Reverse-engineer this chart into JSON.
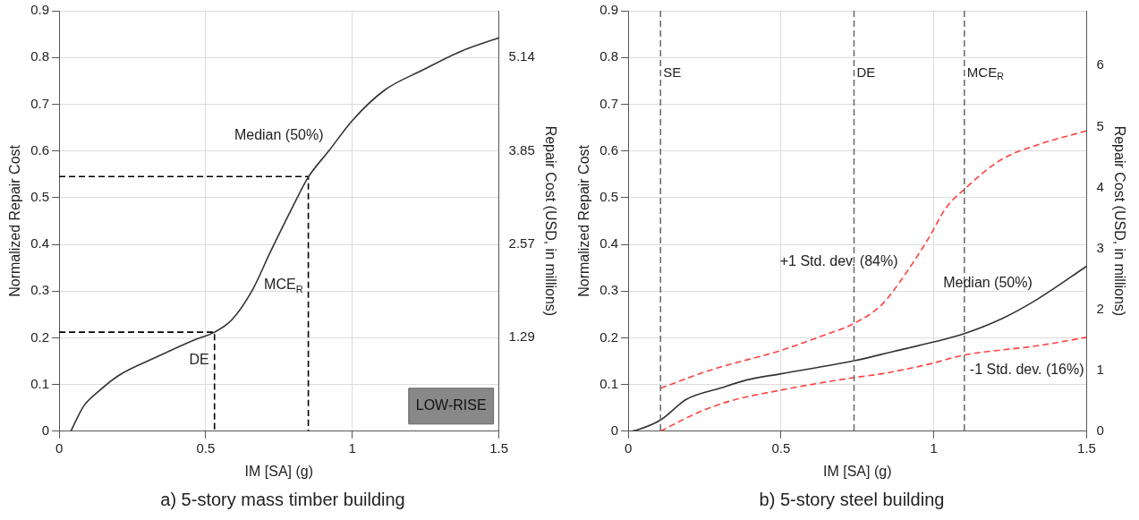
{
  "chart_data": [
    {
      "type": "line",
      "title": "a) 5-story mass timber building",
      "xlabel": "IM [SA] (g)",
      "ylabel": "Normalized Repair Cost",
      "y2label": "Repair Cost (USD, in millions)",
      "xlim": [
        0,
        1.5
      ],
      "xticks": [
        0,
        0.5,
        1,
        1.5
      ],
      "ylim": [
        0,
        0.9
      ],
      "yticks": [
        0,
        0.1,
        0.2,
        0.3,
        0.4,
        0.5,
        0.6,
        0.7,
        0.8,
        0.9
      ],
      "y2lim": [
        0,
        5.78
      ],
      "y2ticks": [
        1.29,
        2.57,
        3.85,
        5.14
      ],
      "grid": true,
      "legend": false,
      "marker": "none",
      "series": [
        {
          "color": "#333333",
          "line_style": "solid",
          "x": [
            0.04,
            0.084,
            0.136,
            0.2,
            0.33,
            0.46,
            0.53,
            0.59,
            0.66,
            0.72,
            0.79,
            0.85,
            0.92,
            1.0,
            1.11,
            1.24,
            1.37,
            1.5
          ],
          "values": [
            0,
            0.054,
            0.086,
            0.118,
            0.158,
            0.195,
            0.212,
            0.239,
            0.303,
            0.383,
            0.472,
            0.544,
            0.6,
            0.665,
            0.73,
            0.773,
            0.813,
            0.842
          ]
        },
        {
          "color": "#000000",
          "line_style": "dashed",
          "x": [
            0,
            0.53,
            0.53
          ],
          "values": [
            0.212,
            0.212,
            0
          ]
        },
        {
          "color": "#000000",
          "line_style": "dashed",
          "x": [
            0,
            0.85,
            0.85
          ],
          "values": [
            0.545,
            0.545,
            0
          ]
        }
      ],
      "annotations": [
        {
          "text": "Median (50%)",
          "x": 0.92,
          "y": 0.6
        },
        {
          "text": "DE",
          "x": 0.53,
          "y": 0.12
        },
        {
          "text": "MCE$_{R}$",
          "x": 0.85,
          "y": 0.28
        },
        "LOW-RISE"
      ]
    },
    {
      "type": "line",
      "title": "b) 5-story steel building",
      "xlabel": "IM [SA] (g)",
      "ylabel": "Normalized Repair Cost",
      "y2label": "Repair Cost (USD, in millions)",
      "xlim": [
        0,
        1.5
      ],
      "xticks": [
        0,
        0.5,
        1,
        1.5
      ],
      "ylim": [
        0,
        0.9
      ],
      "yticks": [
        0,
        0.1,
        0.2,
        0.3,
        0.4,
        0.5,
        0.6,
        0.7,
        0.8,
        0.9
      ],
      "y2lim": [
        0,
        6.9
      ],
      "y2ticks": [
        0,
        1,
        2,
        3,
        4,
        5,
        6
      ],
      "grid": true,
      "legend": false,
      "marker": "none",
      "series": [
        {
          "color": "#333333",
          "line_style": "solid",
          "x": [
            0.01,
            0.026,
            0.106,
            0.19,
            0.3,
            0.39,
            0.5,
            0.74,
            0.87,
            1.0,
            1.1,
            1.22,
            1.34,
            1.5
          ],
          "values": [
            0,
            0.002,
            0.024,
            0.068,
            0.092,
            0.11,
            0.123,
            0.151,
            0.171,
            0.191,
            0.209,
            0.24,
            0.283,
            0.353
          ]
        },
        {
          "color": "#ff4040",
          "line_style": "dashed",
          "x": [
            0.106,
            0.27,
            0.5,
            0.63,
            0.74,
            0.83,
            0.9,
            0.98,
            1.04,
            1.1,
            1.22,
            1.34,
            1.5
          ],
          "values": [
            0.092,
            0.131,
            0.173,
            0.203,
            0.231,
            0.271,
            0.33,
            0.41,
            0.478,
            0.518,
            0.581,
            0.613,
            0.643
          ]
        },
        {
          "color": "#ff4040",
          "line_style": "dashed",
          "x": [
            0.106,
            0.215,
            0.33,
            0.5,
            0.74,
            0.83,
            0.98,
            1.1,
            1.34,
            1.5
          ],
          "values": [
            0,
            0.036,
            0.064,
            0.088,
            0.115,
            0.123,
            0.143,
            0.163,
            0.183,
            0.201
          ]
        }
      ],
      "ref_lines": [
        {
          "axis": "x",
          "value": 0.106,
          "label": "SE",
          "color": "#666666",
          "line_style": "dashed"
        },
        {
          "axis": "x",
          "value": 0.739,
          "label": "DE",
          "color": "#666666",
          "line_style": "dashed"
        },
        {
          "axis": "x",
          "value": 1.1,
          "label": "MCE$_{R}$",
          "color": "#666666",
          "line_style": "dashed"
        }
      ],
      "annotations": [
        {
          "text": "+1 Std. dev. (84%)",
          "x": 0.9,
          "y": 0.33
        },
        {
          "text": "Median (50%)",
          "x": 1.34,
          "y": 0.283
        },
        {
          "text": "-1 Std. dev. (16%)",
          "x": 1.1,
          "y": 0.163
        }
      ]
    }
  ]
}
